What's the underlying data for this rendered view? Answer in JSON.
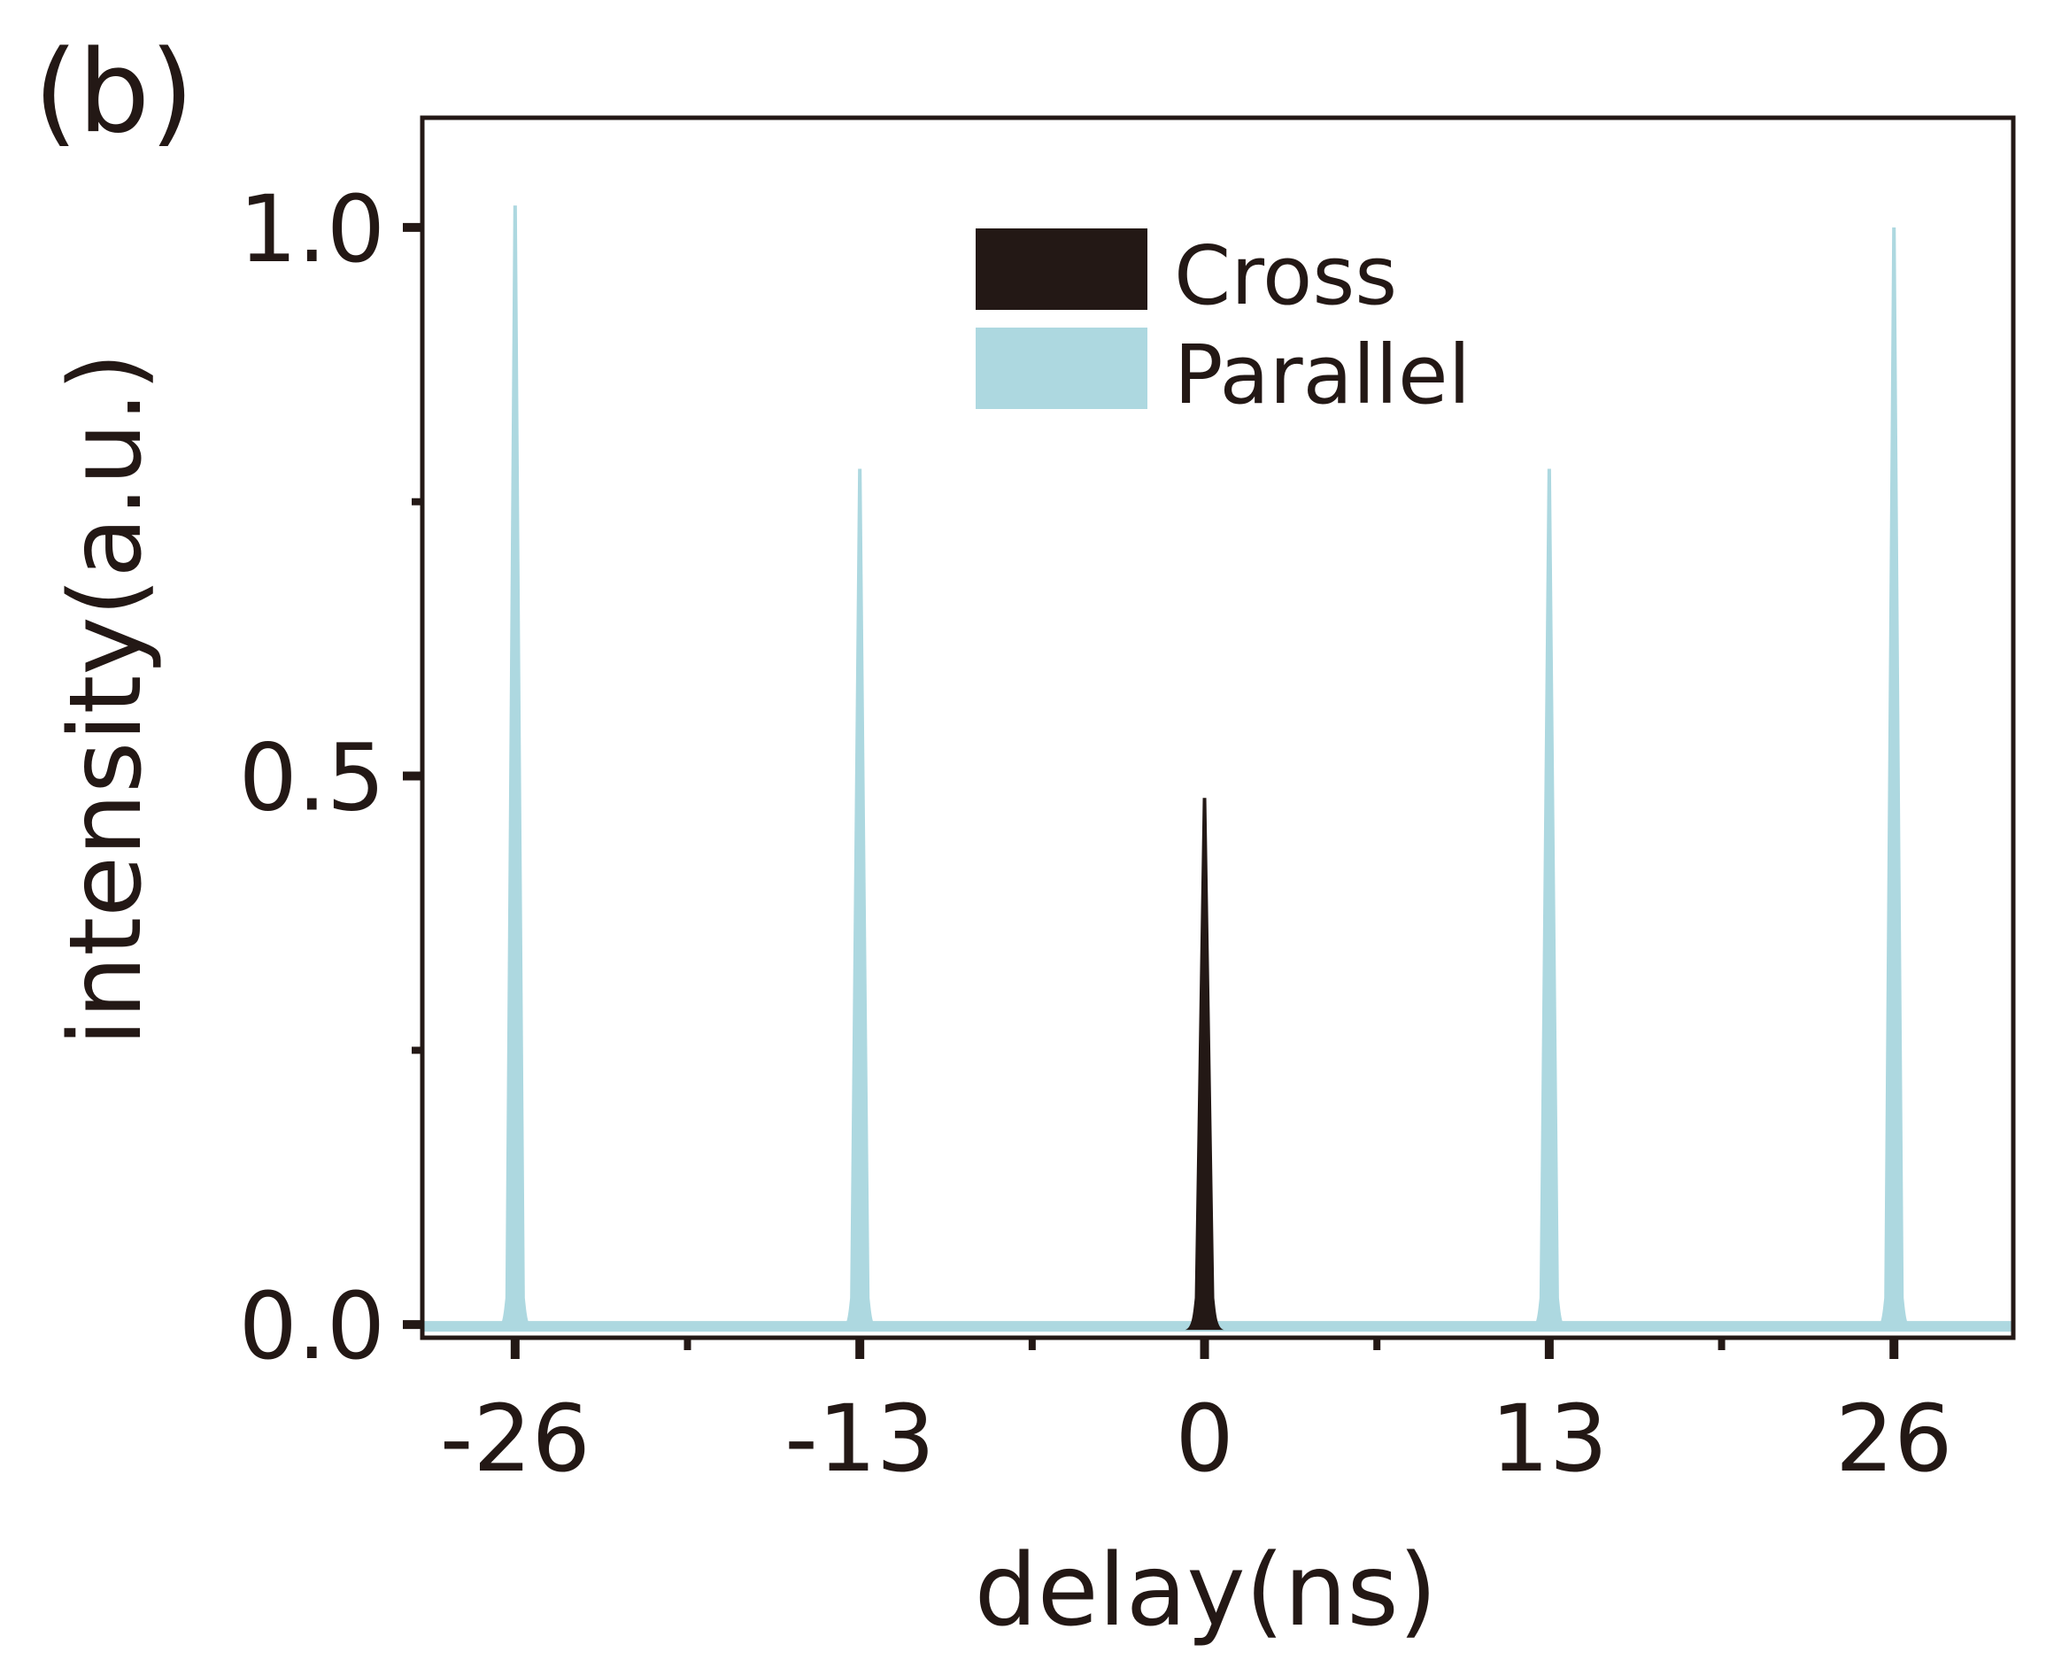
{
  "panel_label": "(b)",
  "colors": {
    "frame": "#231815",
    "cross": "#231815",
    "parallel": "#add8e0",
    "background": "#ffffff"
  },
  "chart_data": {
    "type": "area",
    "xlabel": "delay(ns)",
    "ylabel": "intensity(a.u.)",
    "xlim": [
      -29.5,
      30.5
    ],
    "ylim": [
      -0.012,
      1.1
    ],
    "xticks": [
      -26,
      -13,
      0,
      13,
      26
    ],
    "xticklabels": [
      "-26",
      "-13",
      "0",
      "13",
      "26"
    ],
    "xminorticks": [
      -19.5,
      -6.5,
      6.5,
      19.5
    ],
    "yticks": [
      0.0,
      0.5,
      1.0
    ],
    "yticklabels": [
      "0.0",
      "0.5",
      "1.0"
    ],
    "yminorticks": [
      0.25,
      0.75
    ],
    "legend_position": "top-center",
    "grid": false,
    "series": [
      {
        "name": "Cross",
        "color": "#231815",
        "peaks": [
          {
            "x": 0,
            "y": 0.48
          }
        ]
      },
      {
        "name": "Parallel",
        "color": "#add8e0",
        "peaks": [
          {
            "x": -26,
            "y": 1.02
          },
          {
            "x": -13,
            "y": 0.78
          },
          {
            "x": 13,
            "y": 0.78
          },
          {
            "x": 26,
            "y": 1.0
          }
        ]
      }
    ]
  }
}
